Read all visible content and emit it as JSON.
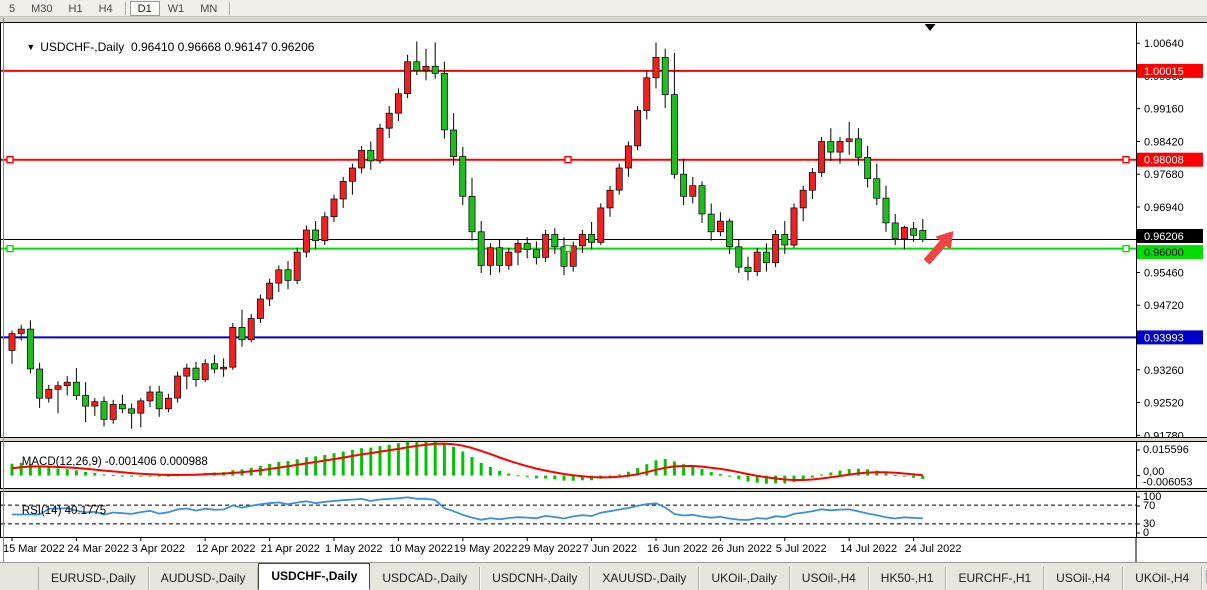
{
  "toolbar": {
    "timeframes": [
      "5",
      "M30",
      "H1",
      "H4",
      "D1",
      "W1",
      "MN"
    ],
    "active_timeframe": "D1"
  },
  "chart": {
    "title_symbol": "USDCHF-,Daily",
    "title_ohlc": "0.96410 0.96668 0.96147 0.96206"
  },
  "macd_panel": {
    "label": "MACD(12,26,9) -0.001406 0.000988"
  },
  "rsi_panel": {
    "label": "RSI(14) 40.1775"
  },
  "chart_data": {
    "type": "candlestick",
    "symbol": "USDCHF",
    "timeframe": "Daily",
    "ohlc_display": {
      "open": "0.96410",
      "high": "0.96668",
      "low": "0.96147",
      "close": "0.96206"
    },
    "ylim": [
      0.9172,
      1.0112
    ],
    "price_axis_ticks": [
      "1.00640",
      "0.99900",
      "0.99160",
      "0.98420",
      "0.97680",
      "0.96940",
      "0.95460",
      "0.94720",
      "0.93260",
      "0.92520",
      "0.91780"
    ],
    "x_labels": [
      "15 Mar 2022",
      "24 Mar 2022",
      "3 Apr 2022",
      "12 Apr 2022",
      "21 Apr 2022",
      "1 May 2022",
      "10 May 2022",
      "19 May 2022",
      "29 May 2022",
      "7 Jun 2022",
      "16 Jun 2022",
      "26 Jun 2022",
      "5 Jul 2022",
      "14 Jul 2022",
      "24 Jul 2022"
    ],
    "x_label_bar_indices": [
      0,
      7,
      14,
      21,
      28,
      35,
      42,
      49,
      56,
      63,
      70,
      77,
      84,
      91,
      98
    ],
    "bull_color": "#ee2222",
    "bear_color": "#22bb22",
    "wick_color": "#000000",
    "candles": [
      [
        0.937,
        0.9415,
        0.934,
        0.9408
      ],
      [
        0.9408,
        0.9428,
        0.9392,
        0.9418
      ],
      [
        0.9418,
        0.9438,
        0.9318,
        0.9328
      ],
      [
        0.9328,
        0.9342,
        0.924,
        0.9262
      ],
      [
        0.9262,
        0.9292,
        0.9252,
        0.9282
      ],
      [
        0.9282,
        0.93,
        0.9228,
        0.929
      ],
      [
        0.929,
        0.9312,
        0.9268,
        0.9298
      ],
      [
        0.9298,
        0.933,
        0.9258,
        0.9268
      ],
      [
        0.9268,
        0.9298,
        0.9208,
        0.9244
      ],
      [
        0.9244,
        0.9262,
        0.9222,
        0.9254
      ],
      [
        0.9254,
        0.9266,
        0.9198,
        0.9214
      ],
      [
        0.9214,
        0.9258,
        0.9204,
        0.9248
      ],
      [
        0.9248,
        0.927,
        0.9228,
        0.9238
      ],
      [
        0.9238,
        0.925,
        0.9193,
        0.9228
      ],
      [
        0.9228,
        0.9262,
        0.9196,
        0.9256
      ],
      [
        0.9256,
        0.929,
        0.9242,
        0.9276
      ],
      [
        0.9276,
        0.929,
        0.922,
        0.9238
      ],
      [
        0.9238,
        0.9272,
        0.923,
        0.9262
      ],
      [
        0.9262,
        0.9322,
        0.9252,
        0.9312
      ],
      [
        0.9312,
        0.934,
        0.9282,
        0.933
      ],
      [
        0.933,
        0.9344,
        0.9288,
        0.9304
      ],
      [
        0.9304,
        0.935,
        0.9298,
        0.934
      ],
      [
        0.934,
        0.936,
        0.9318,
        0.9328
      ],
      [
        0.9328,
        0.9352,
        0.931,
        0.9332
      ],
      [
        0.9332,
        0.9432,
        0.9326,
        0.9422
      ],
      [
        0.9422,
        0.9462,
        0.9378,
        0.9394
      ],
      [
        0.9394,
        0.9452,
        0.9388,
        0.9442
      ],
      [
        0.9442,
        0.9496,
        0.9432,
        0.9486
      ],
      [
        0.9486,
        0.9532,
        0.947,
        0.9522
      ],
      [
        0.9522,
        0.9562,
        0.9502,
        0.9552
      ],
      [
        0.9552,
        0.9572,
        0.9508,
        0.9528
      ],
      [
        0.9528,
        0.9602,
        0.952,
        0.9592
      ],
      [
        0.9592,
        0.9652,
        0.958,
        0.9642
      ],
      [
        0.9642,
        0.9662,
        0.9598,
        0.9618
      ],
      [
        0.9618,
        0.9682,
        0.9608,
        0.9672
      ],
      [
        0.9672,
        0.9722,
        0.966,
        0.9712
      ],
      [
        0.9712,
        0.9762,
        0.9692,
        0.9752
      ],
      [
        0.9752,
        0.9792,
        0.9722,
        0.9782
      ],
      [
        0.9782,
        0.9832,
        0.977,
        0.9822
      ],
      [
        0.9822,
        0.9842,
        0.9778,
        0.9798
      ],
      [
        0.9798,
        0.9882,
        0.9792,
        0.9872
      ],
      [
        0.9872,
        0.9922,
        0.985,
        0.9906
      ],
      [
        0.9906,
        0.9962,
        0.9888,
        0.995
      ],
      [
        0.995,
        1.0038,
        0.994,
        1.0022
      ],
      [
        1.0022,
        1.0068,
        0.9992,
        1.0002
      ],
      [
        1.0002,
        1.0052,
        0.998,
        1.0012
      ],
      [
        1.0012,
        1.0066,
        0.9984,
        0.9996
      ],
      [
        0.9996,
        1.0022,
        0.9848,
        0.9868
      ],
      [
        0.9868,
        0.9906,
        0.9788,
        0.9808
      ],
      [
        0.9808,
        0.983,
        0.9698,
        0.9718
      ],
      [
        0.9718,
        0.976,
        0.9618,
        0.9638
      ],
      [
        0.9638,
        0.9662,
        0.9545,
        0.9562
      ],
      [
        0.9562,
        0.9612,
        0.954,
        0.9602
      ],
      [
        0.9602,
        0.9622,
        0.9546,
        0.9562
      ],
      [
        0.9562,
        0.9602,
        0.9552,
        0.9592
      ],
      [
        0.9592,
        0.9622,
        0.9562,
        0.9612
      ],
      [
        0.9612,
        0.9626,
        0.9578,
        0.9598
      ],
      [
        0.9598,
        0.9616,
        0.9564,
        0.958
      ],
      [
        0.958,
        0.9642,
        0.957,
        0.9632
      ],
      [
        0.9632,
        0.9646,
        0.9588,
        0.9604
      ],
      [
        0.9604,
        0.9626,
        0.954,
        0.956
      ],
      [
        0.956,
        0.9616,
        0.9548,
        0.9606
      ],
      [
        0.9606,
        0.9642,
        0.959,
        0.9632
      ],
      [
        0.9632,
        0.966,
        0.9598,
        0.9614
      ],
      [
        0.9614,
        0.9702,
        0.9608,
        0.9692
      ],
      [
        0.9692,
        0.9742,
        0.9672,
        0.9732
      ],
      [
        0.9732,
        0.9792,
        0.9722,
        0.9782
      ],
      [
        0.9782,
        0.9842,
        0.9762,
        0.9832
      ],
      [
        0.9832,
        0.9922,
        0.9822,
        0.9912
      ],
      [
        0.9912,
        1.0002,
        0.9892,
        0.9986
      ],
      [
        0.9986,
        1.0066,
        0.9962,
        1.0032
      ],
      [
        1.0032,
        1.0052,
        0.9918,
        0.9948
      ],
      [
        0.9948,
        1.0042,
        0.9758,
        0.9768
      ],
      [
        0.9768,
        0.9802,
        0.9698,
        0.9718
      ],
      [
        0.9718,
        0.9762,
        0.9702,
        0.9742
      ],
      [
        0.9742,
        0.9752,
        0.9658,
        0.9678
      ],
      [
        0.9678,
        0.9702,
        0.9618,
        0.9638
      ],
      [
        0.9638,
        0.9682,
        0.9628,
        0.9662
      ],
      [
        0.9662,
        0.9668,
        0.9588,
        0.9604
      ],
      [
        0.9604,
        0.9622,
        0.9545,
        0.9558
      ],
      [
        0.9558,
        0.9582,
        0.9528,
        0.9548
      ],
      [
        0.9548,
        0.9602,
        0.9538,
        0.9592
      ],
      [
        0.9592,
        0.9612,
        0.9548,
        0.9568
      ],
      [
        0.9568,
        0.9642,
        0.9558,
        0.9632
      ],
      [
        0.9632,
        0.9662,
        0.9588,
        0.9608
      ],
      [
        0.9608,
        0.9702,
        0.9602,
        0.9692
      ],
      [
        0.9692,
        0.9742,
        0.9662,
        0.9732
      ],
      [
        0.9732,
        0.9782,
        0.9712,
        0.9772
      ],
      [
        0.9772,
        0.9852,
        0.9762,
        0.9842
      ],
      [
        0.9842,
        0.9872,
        0.9798,
        0.9818
      ],
      [
        0.9818,
        0.9852,
        0.9792,
        0.9842
      ],
      [
        0.9842,
        0.9886,
        0.9812,
        0.9848
      ],
      [
        0.9848,
        0.9872,
        0.9788,
        0.9806
      ],
      [
        0.9806,
        0.9832,
        0.9738,
        0.9758
      ],
      [
        0.9758,
        0.9792,
        0.9698,
        0.9714
      ],
      [
        0.9714,
        0.9742,
        0.9638,
        0.9658
      ],
      [
        0.9658,
        0.9678,
        0.9608,
        0.9622
      ],
      [
        0.9622,
        0.9652,
        0.9598,
        0.9648
      ],
      [
        0.9645,
        0.966,
        0.9615,
        0.963
      ],
      [
        0.9641,
        0.96668,
        0.96147,
        0.96206
      ]
    ],
    "indicator_seed_closes": [
      0.9185,
      0.921,
      0.9235,
      0.926,
      0.9285,
      0.931,
      0.9335,
      0.936,
      0.9385,
      0.9405
    ],
    "hlines": [
      {
        "price": 1.00015,
        "label": "1.00015",
        "color": "#ff0000",
        "width": 2,
        "badge_bg": "#ff0000",
        "badge_fg": "#ffffff",
        "handles": false,
        "role": "resistance"
      },
      {
        "price": 0.98008,
        "label": "0.98008",
        "color": "#ff0000",
        "width": 2,
        "badge_bg": "#ff0000",
        "badge_fg": "#ffffff",
        "handles": true,
        "role": "resistance"
      },
      {
        "price": 0.96206,
        "label": "0.96206",
        "color": "#000000",
        "width": 1,
        "badge_bg": "#000000",
        "badge_fg": "#ffffff",
        "handles": false,
        "role": "current-price"
      },
      {
        "price": 0.96,
        "label": "0.96000",
        "color": "#00dd00",
        "width": 2,
        "badge_bg": "#00dd00",
        "badge_fg": "#000000",
        "handles": true,
        "role": "support"
      },
      {
        "price": 0.93993,
        "label": "0.93993",
        "color": "#0000cc",
        "width": 2,
        "badge_bg": "#0000cc",
        "badge_fg": "#ffffff",
        "handles": false,
        "role": "support"
      }
    ],
    "arrow_annotation": {
      "color": "#ef4444",
      "direction": "up-right"
    },
    "macd": {
      "label": "MACD(12,26,9) -0.001406 0.000988",
      "params": [
        12,
        26,
        9
      ],
      "current_macd": -0.001406,
      "current_signal": 0.000988,
      "ylim": [
        -0.006053,
        0.015596
      ],
      "axis_labels": [
        "0.015596",
        "0,00",
        "-0.006053"
      ],
      "hist_color": "#00c400",
      "signal_color": "#ff0000"
    },
    "rsi": {
      "label": "RSI(14) 40.1775",
      "period": 14,
      "current": 40.1775,
      "ylim": [
        0,
        100
      ],
      "levels": [
        70,
        30
      ],
      "axis_labels": [
        "100",
        "70",
        "30",
        "0"
      ],
      "line_color": "#3c8fd9"
    }
  },
  "tabs": {
    "items": [
      "EURUSD-,Daily",
      "AUDUSD-,Daily",
      "USDCHF-,Daily",
      "USDCAD-,Daily",
      "USDCNH-,Daily",
      "XAUUSD-,Daily",
      "UKOil-,Daily",
      "USOil-,H4",
      "HK50-,H1",
      "EURCHF-,H1",
      "USOil-,H4",
      "UKOil-,H4"
    ],
    "active_index": 2,
    "scroll_left": "◄",
    "scroll_right": "►"
  }
}
